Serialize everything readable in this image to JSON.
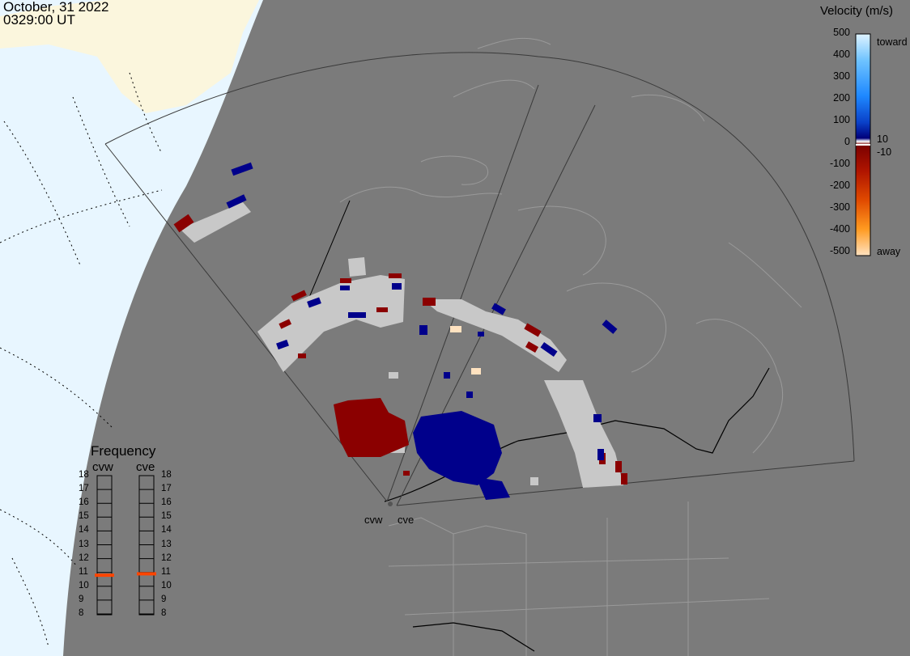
{
  "title": {
    "date": "October, 31 2022",
    "time": "0329:00 UT"
  },
  "velocity_legend": {
    "title": "Velocity (m/s)",
    "ticks": [
      "500",
      "400",
      "300",
      "200",
      "100",
      "0",
      "-100",
      "-200",
      "-300",
      "-400",
      "-500"
    ],
    "toward_label": "toward",
    "away_label": "away",
    "low_labels": [
      "10",
      "-10"
    ],
    "colors": {
      "toward_light": "#dff3ff",
      "toward_mid": "#1e90ff",
      "toward_dark": "#00007a",
      "away_dark": "#7a0000",
      "away_mid": "#ff7f00",
      "away_light": "#ffd9b0",
      "ground_scatter": "#c8c8c8",
      "land": "#7b7b7b",
      "ocean": "#e8f6ff",
      "sunlit_land": "#fbf6dd"
    }
  },
  "frequency_panel": {
    "title": "Frequency",
    "radars": [
      "cvw",
      "cve"
    ],
    "ticks": [
      "18",
      "17",
      "16",
      "15",
      "14",
      "13",
      "12",
      "11",
      "10",
      "9",
      "8"
    ],
    "current_mhz": {
      "cvw": 10.8,
      "cve": 10.9
    },
    "marker_color": "#ff4500"
  },
  "radars": [
    {
      "code": "cvw",
      "label": "cvw"
    },
    {
      "code": "cve",
      "label": "cve"
    }
  ]
}
